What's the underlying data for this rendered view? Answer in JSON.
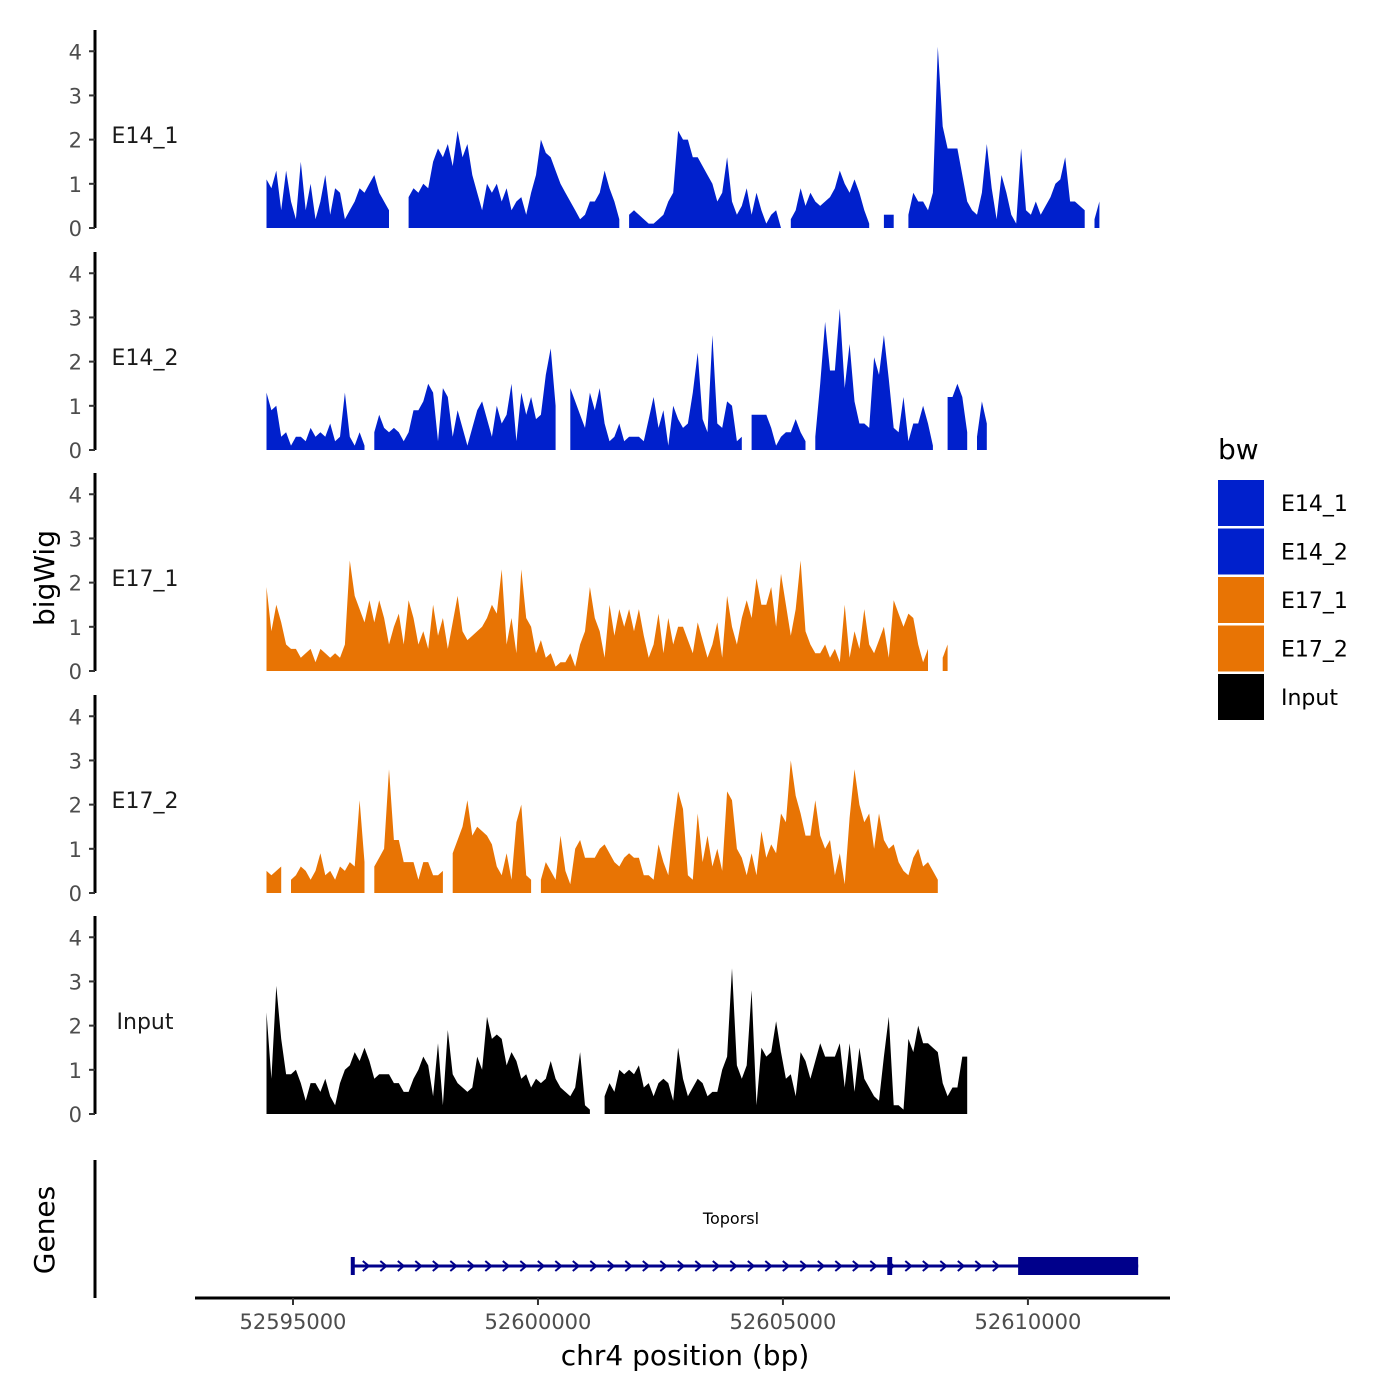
{
  "chart_data": {
    "type": "area",
    "ylabel": "bigWig",
    "xlabel": "chr4 position (bp)",
    "ylim": [
      0,
      4.3
    ],
    "yticks": [
      0,
      1,
      2,
      3,
      4
    ],
    "xlim": [
      52593000,
      52612900
    ],
    "xticks": [
      52595000,
      52600000,
      52605000,
      52610000
    ],
    "x_start": 52594460,
    "x_step": 100,
    "legend": {
      "title": "bw",
      "position": "right",
      "entries": [
        {
          "name": "E14_1",
          "color": "#0020CC"
        },
        {
          "name": "E14_2",
          "color": "#0020CC"
        },
        {
          "name": "E17_1",
          "color": "#E87404"
        },
        {
          "name": "E17_2",
          "color": "#E87404"
        },
        {
          "name": "Input",
          "color": "#000000"
        }
      ]
    },
    "series": [
      {
        "name": "E14_1",
        "color": "#0020CC",
        "values": [
          1.1,
          0.9,
          1.3,
          0.4,
          1.3,
          0.6,
          0.2,
          1.5,
          0.4,
          1.0,
          0.2,
          0.6,
          1.2,
          0.3,
          0.9,
          0.8,
          0.2,
          0.4,
          0.6,
          0.9,
          0.8,
          1.0,
          1.2,
          0.8,
          0.6,
          0.4,
          null,
          null,
          null,
          0.7,
          0.9,
          0.8,
          1.0,
          0.9,
          1.5,
          1.8,
          1.6,
          1.9,
          1.4,
          2.2,
          1.6,
          1.9,
          1.2,
          0.8,
          0.4,
          1.0,
          0.8,
          1.0,
          0.6,
          0.9,
          0.4,
          0.6,
          0.7,
          0.3,
          0.8,
          1.2,
          2.0,
          1.7,
          1.6,
          1.3,
          1.0,
          0.8,
          0.6,
          0.4,
          0.2,
          0.3,
          0.6,
          0.6,
          0.8,
          1.3,
          0.9,
          0.6,
          0.2,
          null,
          0.3,
          0.4,
          0.3,
          0.2,
          0.1,
          0.1,
          0.2,
          0.3,
          0.6,
          0.8,
          2.2,
          2.0,
          2.0,
          1.6,
          1.6,
          1.4,
          1.2,
          1.0,
          0.6,
          0.8,
          1.6,
          0.6,
          0.3,
          0.5,
          0.9,
          0.3,
          0.8,
          0.4,
          0.1,
          0.3,
          0.4,
          0.0,
          null,
          0.2,
          0.4,
          0.9,
          0.5,
          0.8,
          0.6,
          0.5,
          0.6,
          0.7,
          0.9,
          1.3,
          1.0,
          0.8,
          1.1,
          0.8,
          0.4,
          0.1,
          null,
          null,
          0.3,
          0.3,
          0.3,
          null,
          null,
          0.3,
          0.8,
          0.6,
          0.6,
          0.4,
          0.8,
          4.1,
          2.3,
          1.8,
          1.8,
          1.8,
          1.2,
          0.6,
          0.4,
          0.3,
          0.8,
          1.9,
          0.9,
          0.2,
          1.2,
          0.8,
          0.3,
          0.1,
          1.8,
          0.4,
          0.3,
          0.6,
          0.3,
          0.5,
          0.7,
          1.0,
          1.1,
          1.6,
          0.6,
          0.6,
          0.5,
          0.4,
          null,
          0.2,
          0.6
        ]
      },
      {
        "name": "E14_2",
        "color": "#0020CC",
        "values": [
          1.3,
          0.9,
          1.0,
          0.3,
          0.4,
          0.1,
          0.3,
          0.3,
          0.2,
          0.5,
          0.3,
          0.4,
          0.3,
          0.6,
          0.2,
          0.3,
          1.3,
          0.3,
          0.1,
          0.4,
          0.1,
          null,
          0.4,
          0.8,
          0.5,
          0.4,
          0.5,
          0.4,
          0.2,
          0.4,
          0.9,
          0.9,
          1.1,
          1.5,
          1.3,
          0.2,
          1.4,
          1.2,
          0.3,
          0.9,
          0.5,
          0.1,
          0.5,
          0.9,
          1.1,
          0.7,
          0.3,
          1.0,
          0.6,
          0.8,
          1.5,
          0.2,
          1.3,
          0.8,
          1.2,
          0.7,
          0.8,
          1.7,
          2.3,
          1.0,
          null,
          null,
          1.4,
          1.1,
          0.8,
          0.5,
          1.3,
          0.9,
          1.4,
          0.6,
          0.2,
          0.3,
          0.6,
          0.2,
          0.3,
          0.3,
          0.3,
          0.2,
          0.7,
          1.2,
          0.5,
          0.9,
          0.1,
          1.0,
          0.7,
          0.5,
          0.6,
          1.3,
          2.2,
          0.7,
          0.4,
          2.6,
          0.6,
          0.5,
          1.1,
          1.0,
          0.2,
          0.3,
          null,
          0.8,
          0.8,
          0.8,
          0.8,
          0.5,
          0.1,
          0.3,
          0.4,
          0.4,
          0.7,
          0.4,
          0.2,
          null,
          0.3,
          1.5,
          2.9,
          1.8,
          1.8,
          3.2,
          1.4,
          2.4,
          1.1,
          0.6,
          0.6,
          0.5,
          2.1,
          1.7,
          2.6,
          1.6,
          0.5,
          0.4,
          1.2,
          0.2,
          0.6,
          0.6,
          1.0,
          0.6,
          0.1,
          null,
          null,
          1.2,
          1.2,
          1.5,
          1.2,
          0.4,
          null,
          0.3,
          1.1,
          0.6
        ]
      },
      {
        "name": "E17_1",
        "color": "#E87404",
        "values": [
          1.9,
          0.9,
          1.5,
          1.1,
          0.6,
          0.5,
          0.5,
          0.3,
          0.4,
          0.5,
          0.2,
          0.5,
          0.4,
          0.3,
          0.4,
          0.3,
          0.6,
          2.5,
          1.7,
          1.4,
          1.1,
          1.6,
          1.1,
          1.6,
          1.2,
          0.6,
          1.0,
          1.3,
          0.6,
          1.6,
          1.2,
          0.6,
          0.9,
          0.5,
          1.5,
          0.8,
          1.2,
          0.5,
          1.1,
          1.7,
          0.9,
          0.7,
          0.8,
          0.9,
          1.0,
          1.2,
          1.5,
          1.3,
          2.3,
          0.6,
          1.2,
          0.4,
          2.3,
          1.2,
          1.0,
          0.4,
          0.7,
          0.3,
          0.4,
          0.1,
          0.2,
          0.2,
          0.4,
          0.1,
          0.6,
          0.9,
          1.9,
          1.2,
          0.9,
          0.3,
          1.5,
          0.8,
          1.4,
          1.0,
          1.4,
          0.9,
          1.4,
          0.8,
          0.3,
          0.6,
          1.3,
          0.4,
          1.2,
          0.6,
          1.0,
          1.0,
          0.7,
          0.4,
          1.1,
          0.7,
          0.3,
          0.6,
          1.1,
          0.3,
          1.7,
          1.0,
          0.6,
          1.2,
          1.6,
          1.2,
          2.1,
          1.5,
          1.5,
          1.9,
          1.0,
          2.2,
          1.5,
          0.8,
          1.4,
          2.5,
          0.9,
          0.6,
          0.4,
          0.4,
          0.6,
          0.3,
          0.5,
          0.2,
          1.5,
          0.3,
          0.9,
          0.5,
          1.4,
          0.6,
          0.4,
          0.7,
          1.0,
          0.3,
          1.6,
          1.3,
          1.0,
          1.3,
          1.2,
          0.6,
          0.2,
          0.5,
          null,
          null,
          0.3,
          0.6
        ]
      },
      {
        "name": "E17_2",
        "color": "#E87404",
        "values": [
          0.5,
          0.4,
          0.5,
          0.6,
          null,
          0.3,
          0.4,
          0.6,
          0.5,
          0.3,
          0.5,
          0.9,
          0.4,
          0.5,
          0.3,
          0.6,
          0.5,
          0.7,
          0.6,
          2.1,
          0.7,
          null,
          0.6,
          0.8,
          1.0,
          2.8,
          1.2,
          1.2,
          0.7,
          0.7,
          0.7,
          0.3,
          0.7,
          0.7,
          0.4,
          0.4,
          0.5,
          null,
          0.9,
          1.2,
          1.5,
          2.1,
          1.3,
          1.5,
          1.4,
          1.3,
          1.1,
          0.6,
          0.4,
          0.9,
          0.3,
          1.6,
          2.0,
          0.4,
          0.3,
          null,
          0.3,
          0.7,
          0.5,
          0.3,
          1.3,
          0.5,
          0.2,
          1.0,
          1.2,
          0.8,
          0.8,
          0.8,
          1.0,
          1.1,
          0.9,
          0.7,
          0.6,
          0.8,
          0.9,
          0.8,
          0.8,
          0.4,
          0.4,
          0.3,
          1.1,
          0.7,
          0.4,
          1.4,
          2.3,
          1.9,
          0.4,
          0.3,
          1.8,
          0.7,
          1.3,
          0.6,
          1.0,
          0.5,
          2.3,
          2.1,
          1.0,
          0.8,
          0.4,
          0.9,
          0.4,
          1.4,
          0.8,
          1.1,
          0.9,
          1.8,
          1.6,
          3.0,
          2.2,
          1.8,
          1.3,
          1.3,
          2.1,
          1.3,
          1.0,
          1.2,
          0.4,
          0.9,
          0.2,
          1.7,
          2.8,
          2.0,
          1.6,
          1.8,
          1.0,
          1.8,
          1.2,
          1.0,
          1.1,
          0.7,
          0.5,
          0.4,
          0.8,
          1.0,
          0.6,
          0.7,
          0.5,
          0.3
        ]
      },
      {
        "name": "Input",
        "color": "#000000",
        "values": [
          2.3,
          0.8,
          2.9,
          1.7,
          0.9,
          0.9,
          1.0,
          0.7,
          0.3,
          0.7,
          0.7,
          0.5,
          0.8,
          0.4,
          0.2,
          0.7,
          1.0,
          1.1,
          1.4,
          1.2,
          1.5,
          1.2,
          0.8,
          0.9,
          0.9,
          0.9,
          0.7,
          0.7,
          0.5,
          0.5,
          0.8,
          1.0,
          1.3,
          1.1,
          0.4,
          1.6,
          0.2,
          1.9,
          0.9,
          0.7,
          0.6,
          0.5,
          0.6,
          1.3,
          1.0,
          2.2,
          1.7,
          1.8,
          1.7,
          1.1,
          1.4,
          1.2,
          0.8,
          0.9,
          0.6,
          0.8,
          0.7,
          0.8,
          1.2,
          0.8,
          0.6,
          0.5,
          0.4,
          0.6,
          1.4,
          0.2,
          0.1,
          null,
          null,
          0.4,
          0.7,
          0.5,
          1.0,
          0.9,
          1.0,
          0.9,
          1.1,
          0.6,
          0.7,
          0.4,
          0.7,
          0.8,
          0.7,
          0.3,
          1.5,
          0.8,
          0.4,
          0.6,
          0.8,
          0.7,
          0.4,
          0.5,
          0.5,
          1.0,
          1.3,
          3.3,
          1.1,
          0.8,
          1.1,
          2.8,
          0.2,
          1.5,
          1.3,
          1.4,
          2.1,
          1.4,
          0.8,
          0.9,
          0.4,
          1.4,
          1.2,
          0.8,
          1.2,
          1.6,
          1.3,
          1.3,
          1.3,
          1.6,
          0.6,
          1.6,
          0.5,
          1.5,
          0.8,
          0.6,
          0.4,
          0.3,
          1.3,
          2.2,
          0.2,
          0.2,
          0.1,
          1.7,
          1.4,
          2.0,
          1.6,
          1.6,
          1.5,
          1.4,
          0.7,
          0.4,
          0.6,
          0.6,
          1.3,
          1.3
        ]
      }
    ],
    "gene_track": {
      "ylabel": "Genes",
      "gene_name": "Toporsl",
      "strand": "+",
      "color": "#00008B",
      "span": [
        52596200,
        52612250
      ],
      "exons": [
        [
          52596200,
          52596250
        ],
        [
          52607150,
          52607250
        ]
      ],
      "cds": [
        [
          52609800,
          52612250
        ]
      ]
    }
  }
}
